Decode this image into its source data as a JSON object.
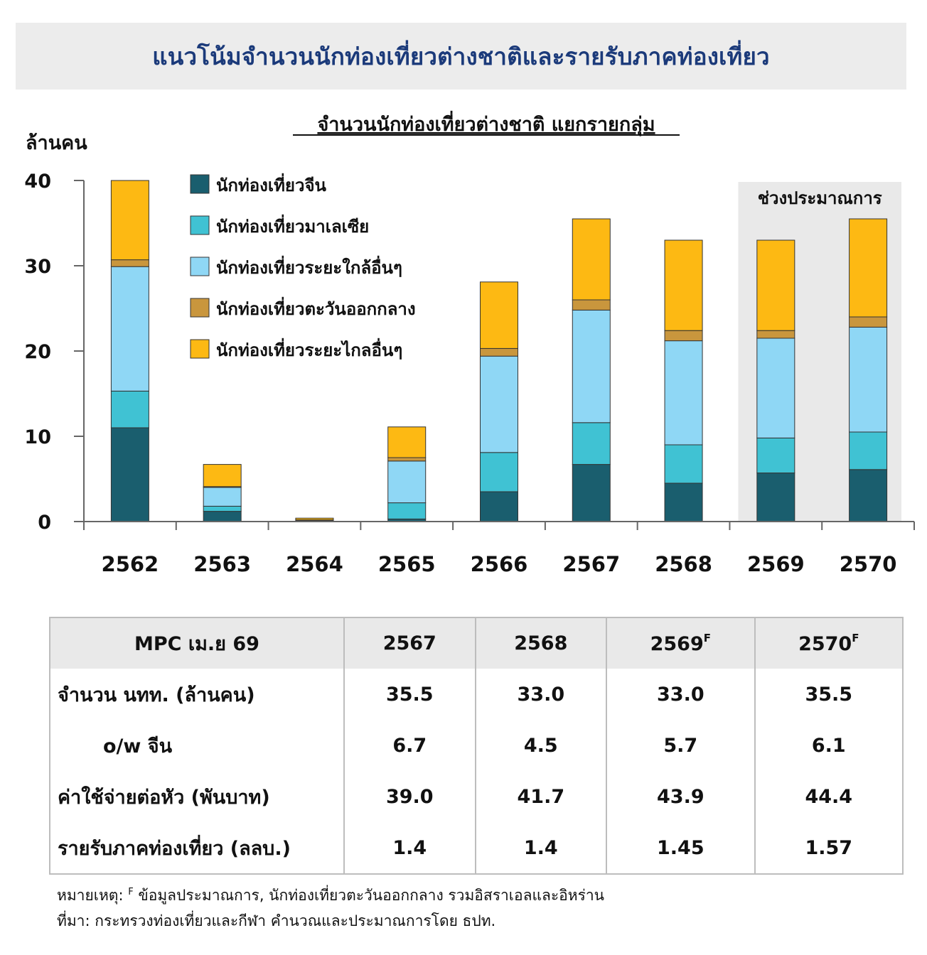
{
  "banner": {
    "title": "แนวโน้มจำนวนนักท่องเที่ยวต่างชาติและรายรับภาคท่องเที่ยว"
  },
  "chart_data": {
    "type": "bar",
    "stacked": true,
    "title": "จำนวนนักท่องเที่ยวต่างชาติ แยกรายกลุ่ม",
    "ylabel": "ล้านคน",
    "ylim": [
      0,
      40
    ],
    "yticks": [
      "0",
      "10",
      "20",
      "30",
      "40"
    ],
    "categories": [
      "2562",
      "2563",
      "2564",
      "2565",
      "2566",
      "2567",
      "2568",
      "2569",
      "2570"
    ],
    "forecast_label": "ช่วงประมาณการ",
    "forecast_categories": [
      "2569",
      "2570"
    ],
    "legend_position": "top-left",
    "grid": false,
    "series": [
      {
        "name": "นักท่องเที่ยวจีน",
        "color": "#1a5e6e",
        "values": [
          11.0,
          1.2,
          0.05,
          0.3,
          3.5,
          6.7,
          4.5,
          5.7,
          6.1
        ]
      },
      {
        "name": "นักท่องเที่ยวมาเลเซีย",
        "color": "#40c2d3",
        "values": [
          4.3,
          0.6,
          0.0,
          1.9,
          4.6,
          4.9,
          4.5,
          4.1,
          4.4
        ]
      },
      {
        "name": "นักท่องเที่ยวระยะใกล้อื่นๆ",
        "color": "#8fd7f5",
        "values": [
          14.6,
          2.2,
          0.05,
          4.9,
          11.3,
          13.2,
          12.2,
          11.7,
          12.3
        ]
      },
      {
        "name": "นักท่องเที่ยวตะวันออกกลาง",
        "color": "#c9963d",
        "values": [
          0.8,
          0.1,
          0.1,
          0.4,
          0.9,
          1.2,
          1.2,
          0.9,
          1.2
        ]
      },
      {
        "name": "นักท่องเที่ยวระยะไกลอื่นๆ",
        "color": "#fdb913",
        "values": [
          9.3,
          2.6,
          0.2,
          3.6,
          7.8,
          9.5,
          10.6,
          10.6,
          11.5
        ]
      }
    ]
  },
  "table": {
    "header": [
      "MPC เม.ย 69",
      "2567",
      "2568",
      "2569",
      "2570"
    ],
    "header_sup": [
      "",
      "",
      "",
      "F",
      "F"
    ],
    "rows": [
      {
        "label": "จำนวน นทท. (ล้านคน)",
        "values": [
          "35.5",
          "33.0",
          "33.0",
          "35.5"
        ]
      },
      {
        "label": "o/w จีน",
        "values": [
          "6.7",
          "4.5",
          "5.7",
          "6.1"
        ]
      },
      {
        "label": "ค่าใช้จ่ายต่อหัว (พันบาท)",
        "values": [
          "39.0",
          "41.7",
          "43.9",
          "44.4"
        ]
      },
      {
        "label": "รายรับภาคท่องเที่ยว (ลลบ.)",
        "values": [
          "1.4",
          "1.4",
          "1.45",
          "1.57"
        ]
      }
    ]
  },
  "notes": {
    "prefix": "หมายเหตุ: ",
    "sup": "F",
    "note": " ข้อมูลประมาณการ, นักท่องเที่ยวตะวันออกกลาง รวมอิสราเอลและอิหร่าน",
    "source": "ที่มา: กระทรวงท่องเที่ยวและกีฬา คำนวณและประมาณการโดย ธปท."
  }
}
